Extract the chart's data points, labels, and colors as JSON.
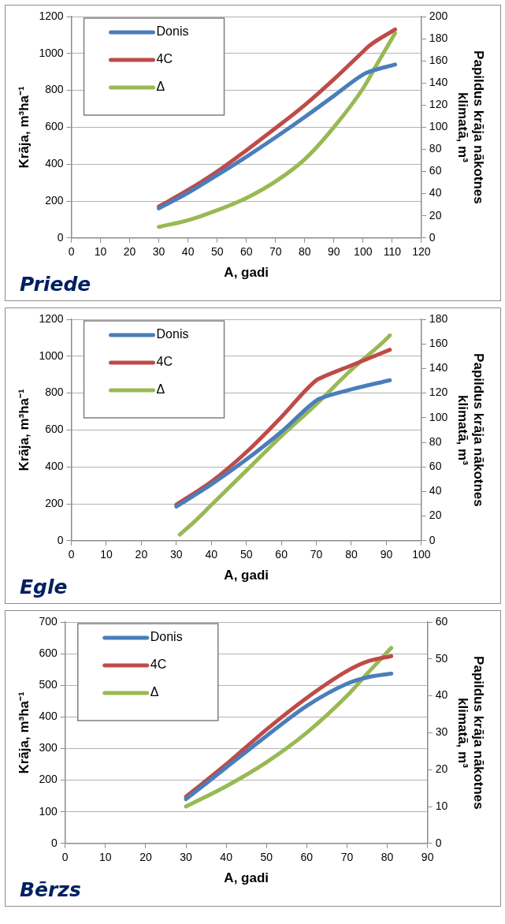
{
  "chart_data": [
    {
      "type": "line",
      "title": "Priede",
      "xlabel": "A, gadi",
      "ylabel": "Krāja, m³ha⁻¹",
      "y2label": "Papildus krāja nākotnes klimatā, m³",
      "xlim": [
        0,
        120
      ],
      "xticks": [
        0,
        10,
        20,
        30,
        40,
        50,
        60,
        70,
        80,
        90,
        100,
        110,
        120
      ],
      "ylim": [
        0,
        1200
      ],
      "yticks": [
        0,
        200,
        400,
        600,
        800,
        1000,
        1200
      ],
      "y2lim": [
        0,
        200
      ],
      "y2ticks": [
        0,
        20,
        40,
        60,
        80,
        100,
        120,
        140,
        160,
        180,
        200
      ],
      "grid": "y",
      "legend": "top left",
      "marker": "none",
      "line_style": "solid",
      "series": [
        {
          "name": "Donis",
          "color": "#4a7ebb",
          "x": [
            30,
            40,
            50,
            60,
            70,
            80,
            90,
            100,
            102,
            111
          ],
          "values": [
            160,
            245,
            340,
            440,
            545,
            655,
            770,
            885,
            900,
            940
          ]
        },
        {
          "name": "4C",
          "color": "#be4b48",
          "x": [
            30,
            40,
            50,
            60,
            70,
            80,
            90,
            100,
            102,
            111
          ],
          "values": [
            170,
            260,
            360,
            475,
            595,
            720,
            860,
            1010,
            1040,
            1130
          ]
        },
        {
          "name": "Δ",
          "color": "#98b954",
          "axis": "y2",
          "x": [
            30,
            40,
            50,
            60,
            70,
            80,
            90,
            100,
            105,
            111
          ],
          "values": [
            10,
            16,
            25,
            36,
            51,
            71,
            100,
            135,
            158,
            185
          ]
        }
      ]
    },
    {
      "type": "line",
      "title": "Egle",
      "xlabel": "A, gadi",
      "ylabel": "Krāja, m³ha⁻¹",
      "y2label": "Papildus krāja nākotnes klimatā, m³",
      "xlim": [
        0,
        100
      ],
      "xticks": [
        0,
        10,
        20,
        30,
        40,
        50,
        60,
        70,
        80,
        90,
        100
      ],
      "ylim": [
        0,
        1200
      ],
      "yticks": [
        0,
        200,
        400,
        600,
        800,
        1000,
        1200
      ],
      "y2lim": [
        0,
        180
      ],
      "y2ticks": [
        0,
        20,
        40,
        60,
        80,
        100,
        120,
        140,
        160,
        180
      ],
      "grid": "y",
      "legend": "top left",
      "marker": "none",
      "line_style": "solid",
      "series": [
        {
          "name": "Donis",
          "color": "#4a7ebb",
          "x": [
            30,
            40,
            50,
            60,
            70,
            71,
            80,
            91
          ],
          "values": [
            185,
            305,
            440,
            590,
            760,
            770,
            820,
            870
          ]
        },
        {
          "name": "4C",
          "color": "#be4b48",
          "x": [
            30,
            40,
            50,
            60,
            70,
            71,
            80,
            91
          ],
          "values": [
            195,
            320,
            480,
            670,
            870,
            880,
            950,
            1035
          ]
        },
        {
          "name": "Δ",
          "color": "#98b954",
          "axis": "y2",
          "x": [
            31,
            35,
            40,
            50,
            60,
            70,
            80,
            90,
            91
          ],
          "values": [
            5,
            15,
            29,
            57,
            85,
            111,
            139,
            164,
            167
          ]
        }
      ]
    },
    {
      "type": "line",
      "title": "Bērzs",
      "xlabel": "A, gadi",
      "ylabel": "Krāja, m³ha⁻¹",
      "y2label": "Papildus krāja nākotnes klimatā, m³",
      "xlim": [
        0,
        90
      ],
      "xticks": [
        0,
        10,
        20,
        30,
        40,
        50,
        60,
        70,
        80,
        90
      ],
      "ylim": [
        0,
        700
      ],
      "yticks": [
        0,
        100,
        200,
        300,
        400,
        500,
        600,
        700
      ],
      "y2lim": [
        0,
        60
      ],
      "y2ticks": [
        0,
        10,
        20,
        30,
        40,
        50,
        60
      ],
      "grid": "y",
      "legend": "top left",
      "marker": "none",
      "line_style": "solid",
      "series": [
        {
          "name": "Donis",
          "color": "#4a7ebb",
          "x": [
            30,
            40,
            50,
            60,
            70,
            75,
            81
          ],
          "values": [
            140,
            240,
            340,
            435,
            505,
            525,
            537
          ]
        },
        {
          "name": "4C",
          "color": "#be4b48",
          "x": [
            30,
            40,
            50,
            60,
            70,
            75,
            81
          ],
          "values": [
            148,
            250,
            360,
            460,
            545,
            575,
            592
          ]
        },
        {
          "name": "Δ",
          "color": "#98b954",
          "axis": "y2",
          "x": [
            30,
            40,
            50,
            60,
            70,
            75,
            81
          ],
          "values": [
            10,
            15.5,
            22,
            30,
            40,
            46,
            53
          ]
        }
      ]
    }
  ]
}
